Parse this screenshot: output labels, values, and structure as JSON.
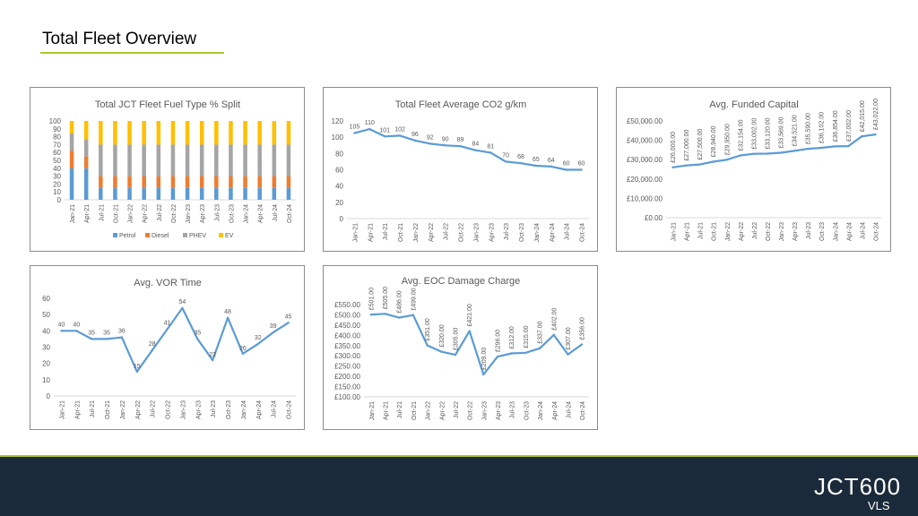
{
  "page": {
    "title": "Total Fleet Overview",
    "logo_text": "JCT600",
    "logo_sub": "VLS"
  },
  "colors": {
    "accent": "#a6c82a",
    "footer": "#1b2a3a",
    "line": "#5b9bd5",
    "petrol": "#5b9bd5",
    "diesel": "#ed7d31",
    "phev": "#a5a5a5",
    "ev": "#ffc000",
    "grid": "#d9d9d9",
    "text": "#595959"
  },
  "chart_data": [
    {
      "id": "fuel",
      "type": "bar",
      "stacked": true,
      "title": "Total JCT Fleet Fuel Type % Split",
      "categories": [
        "Jan-21",
        "Apr-21",
        "Jul-21",
        "Oct-21",
        "Jan-22",
        "Apr-22",
        "Jul-22",
        "Oct-22",
        "Jan-23",
        "Apr-23",
        "Jul-23",
        "Oct-23",
        "Jan-24",
        "Apr-24",
        "Jul-24",
        "Oct-24"
      ],
      "series": [
        {
          "name": "Petrol",
          "values": [
            40,
            40,
            15,
            15,
            15,
            15,
            15,
            15,
            15,
            15,
            15,
            15,
            15,
            15,
            15,
            15
          ]
        },
        {
          "name": "Diesel",
          "values": [
            22,
            15,
            15,
            15,
            15,
            15,
            15,
            15,
            15,
            15,
            15,
            15,
            15,
            15,
            15,
            15
          ]
        },
        {
          "name": "PHEV",
          "values": [
            22,
            22,
            40,
            40,
            40,
            40,
            40,
            40,
            40,
            40,
            40,
            40,
            40,
            40,
            40,
            40
          ]
        },
        {
          "name": "EV",
          "values": [
            16,
            23,
            30,
            30,
            30,
            30,
            30,
            30,
            30,
            30,
            30,
            30,
            30,
            30,
            30,
            30
          ]
        }
      ],
      "ylim": [
        0,
        100
      ],
      "yticks": [
        0,
        10,
        20,
        30,
        40,
        50,
        60,
        70,
        80,
        90,
        100
      ]
    },
    {
      "id": "co2",
      "type": "line",
      "title": "Total Fleet Average CO2 g/km",
      "categories": [
        "Jan-21",
        "Apr-21",
        "Jul-21",
        "Oct-21",
        "Jan-22",
        "Apr-22",
        "Jul-22",
        "Oct-22",
        "Jan-23",
        "Apr-23",
        "Jul-23",
        "Oct-23",
        "Jan-24",
        "Apr-24",
        "Jul-24",
        "Oct-24"
      ],
      "values": [
        105,
        110,
        101,
        102,
        96,
        92,
        90,
        89,
        84,
        81,
        70,
        68,
        65,
        64,
        60,
        60
      ],
      "labels": [
        "105",
        "110",
        "101",
        "102",
        "96",
        "92",
        "90",
        "89",
        "84",
        "81",
        "70",
        "68",
        "65",
        "64",
        "60",
        "60"
      ],
      "ylim": [
        0,
        120
      ],
      "yticks": [
        "0",
        "20",
        "40",
        "60",
        "80",
        "100",
        "120"
      ]
    },
    {
      "id": "funded",
      "type": "line",
      "title": "Avg. Funded Capital",
      "categories": [
        "Jan-21",
        "Apr-21",
        "Jul-21",
        "Oct-21",
        "Jan-22",
        "Apr-22",
        "Jul-22",
        "Oct-22",
        "Jan-23",
        "Apr-23",
        "Jul-23",
        "Oct-23",
        "Jan-24",
        "Apr-24",
        "Jul-24",
        "Oct-24"
      ],
      "values": [
        26000,
        27000,
        27500,
        28940,
        29950,
        32154,
        33002,
        33120,
        33569,
        34521,
        35590,
        36102,
        36854,
        37002,
        42015,
        43022
      ],
      "labels": [
        "£26,000.00",
        "£27,000.00",
        "£27,500.00",
        "£28,940.00",
        "£29,950.00",
        "£32,154.00",
        "£33,002.00",
        "£33,120.00",
        "£33,569.00",
        "£34,521.00",
        "£35,590.00",
        "£36,102.00",
        "£36,854.00",
        "£37,002.00",
        "£42,015.00",
        "£43,022.00"
      ],
      "ylim": [
        0,
        50000
      ],
      "yticks": [
        "£0.00",
        "£10,000.00",
        "£20,000.00",
        "£30,000.00",
        "£40,000.00",
        "£50,000.00"
      ]
    },
    {
      "id": "vor",
      "type": "line",
      "title": "Avg. VOR Time",
      "categories": [
        "Jan-21",
        "Apr-21",
        "Jul-21",
        "Oct-21",
        "Jan-22",
        "Apr-22",
        "Jul-22",
        "Oct-22",
        "Jan-23",
        "Apr-23",
        "Jul-23",
        "Oct-23",
        "Jan-24",
        "Apr-24",
        "Jul-24",
        "Oct-24"
      ],
      "values": [
        40,
        40,
        35,
        35,
        36,
        15,
        28,
        41,
        54,
        35,
        22,
        48,
        26,
        32,
        39,
        45
      ],
      "labels": [
        "40",
        "40",
        "35",
        "35",
        "36",
        "15",
        "28",
        "41",
        "54",
        "35",
        "22",
        "48",
        "26",
        "32",
        "39",
        "45"
      ],
      "ylim": [
        0,
        60
      ],
      "yticks": [
        "0",
        "10",
        "20",
        "30",
        "40",
        "50",
        "60"
      ]
    },
    {
      "id": "eoc",
      "type": "line",
      "title": "Avg. EOC Damage Charge",
      "categories": [
        "Jan-21",
        "Apr-21",
        "Jul-21",
        "Oct-21",
        "Jan-22",
        "Apr-22",
        "Jul-22",
        "Oct-22",
        "Jan-23",
        "Apr-23",
        "Jul-23",
        "Oct-23",
        "Jan-24",
        "Apr-24",
        "Jul-24",
        "Oct-24"
      ],
      "values": [
        501,
        505,
        486,
        499,
        351,
        320,
        305,
        421,
        209,
        296,
        312,
        315,
        337,
        402,
        307,
        356
      ],
      "labels": [
        "£501.00",
        "£505.00",
        "£486.00",
        "£499.00",
        "£351.00",
        "£320.00",
        "£305.00",
        "£421.00",
        "£209.00",
        "£296.00",
        "£312.00",
        "£315.00",
        "£337.00",
        "£402.00",
        "£307.00",
        "£356.00"
      ],
      "ylim": [
        100,
        550
      ],
      "yticks": [
        "£100.00",
        "£150.00",
        "£200.00",
        "£250.00",
        "£300.00",
        "£350.00",
        "£400.00",
        "£450.00",
        "£500.00",
        "£550.00"
      ]
    }
  ]
}
